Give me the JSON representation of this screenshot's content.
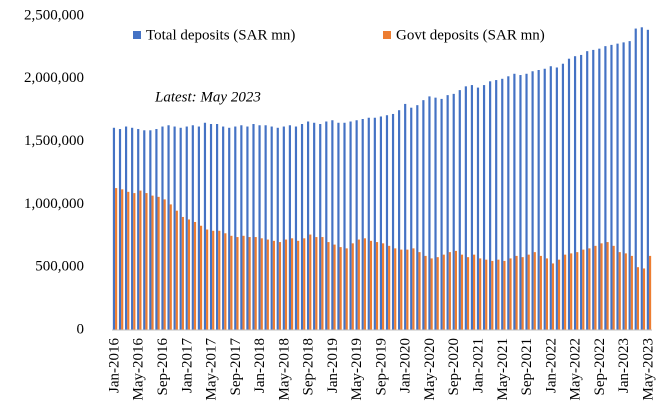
{
  "chart_data": {
    "type": "bar",
    "annotations": [
      "Latest: May 2023"
    ],
    "categories": [
      "Jan-2016",
      null,
      null,
      null,
      "May-2016",
      null,
      null,
      null,
      "Sep-2016",
      null,
      null,
      null,
      "Jan-2017",
      null,
      null,
      null,
      "May-2017",
      null,
      null,
      null,
      "Sep-2017",
      null,
      null,
      null,
      "Jan-2018",
      null,
      null,
      null,
      "May-2018",
      null,
      null,
      null,
      "Sep-2018",
      null,
      null,
      null,
      "Jan-2019",
      null,
      null,
      null,
      "May-2019",
      null,
      null,
      null,
      "Sep-2019",
      null,
      null,
      null,
      "Jan-2020",
      null,
      null,
      null,
      "May-2020",
      null,
      null,
      null,
      "Sep-2020",
      null,
      null,
      null,
      "Jan-2021",
      null,
      null,
      null,
      "May-2021",
      null,
      null,
      null,
      "Sep-2021",
      null,
      null,
      null,
      "Jan-2022",
      null,
      null,
      null,
      "May-2022",
      null,
      null,
      null,
      "Sep-2022",
      null,
      null,
      null,
      "Jan-2023",
      null,
      null,
      null,
      "May-2023"
    ],
    "series": [
      {
        "name": "Total deposits (SAR mn)",
        "color": "#4472c4",
        "values": [
          1610000,
          1600000,
          1620000,
          1610000,
          1600000,
          1590000,
          1590000,
          1600000,
          1620000,
          1630000,
          1620000,
          1610000,
          1620000,
          1630000,
          1620000,
          1650000,
          1640000,
          1640000,
          1620000,
          1610000,
          1620000,
          1630000,
          1620000,
          1640000,
          1630000,
          1630000,
          1620000,
          1610000,
          1620000,
          1630000,
          1620000,
          1640000,
          1660000,
          1650000,
          1640000,
          1660000,
          1670000,
          1650000,
          1650000,
          1660000,
          1670000,
          1680000,
          1690000,
          1690000,
          1700000,
          1710000,
          1720000,
          1750000,
          1800000,
          1770000,
          1790000,
          1830000,
          1860000,
          1850000,
          1840000,
          1870000,
          1880000,
          1910000,
          1940000,
          1950000,
          1930000,
          1950000,
          1980000,
          1990000,
          2000000,
          2020000,
          2040000,
          2030000,
          2040000,
          2060000,
          2070000,
          2080000,
          2100000,
          2090000,
          2120000,
          2160000,
          2180000,
          2190000,
          2220000,
          2230000,
          2240000,
          2260000,
          2270000,
          2280000,
          2290000,
          2300000,
          2400000,
          2410000,
          2390000
        ]
      },
      {
        "name": "Govt deposits (SAR mn)",
        "color": "#ed7d31",
        "values": [
          1130000,
          1120000,
          1100000,
          1090000,
          1110000,
          1090000,
          1070000,
          1060000,
          1040000,
          1000000,
          950000,
          900000,
          880000,
          860000,
          830000,
          800000,
          790000,
          790000,
          770000,
          750000,
          740000,
          750000,
          740000,
          740000,
          730000,
          720000,
          710000,
          700000,
          720000,
          730000,
          710000,
          730000,
          760000,
          740000,
          740000,
          700000,
          680000,
          660000,
          650000,
          690000,
          720000,
          730000,
          710000,
          700000,
          690000,
          670000,
          650000,
          640000,
          640000,
          650000,
          620000,
          590000,
          570000,
          580000,
          600000,
          620000,
          630000,
          600000,
          580000,
          600000,
          570000,
          560000,
          550000,
          560000,
          550000,
          570000,
          590000,
          580000,
          600000,
          620000,
          590000,
          570000,
          530000,
          560000,
          600000,
          610000,
          620000,
          640000,
          650000,
          670000,
          690000,
          700000,
          670000,
          620000,
          610000,
          590000,
          500000,
          490000,
          590000
        ]
      }
    ],
    "ylim": [
      0,
      2500000
    ],
    "yticks": [
      0,
      {
        "value": 500000,
        "label": "500,000"
      },
      {
        "value": 1000000,
        "label": "1,000,000"
      },
      {
        "value": 1500000,
        "label": "1,500,000"
      },
      {
        "value": 2000000,
        "label": "2,000,000"
      },
      {
        "value": 2500000,
        "label": "2,500,000"
      }
    ],
    "grid": false
  }
}
